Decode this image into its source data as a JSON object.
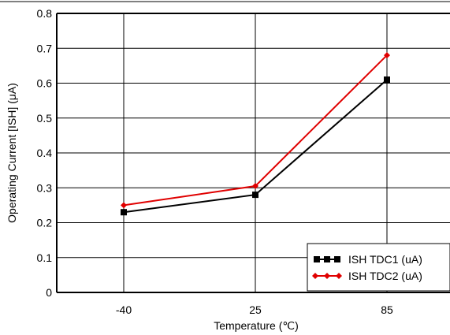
{
  "chart_data": {
    "type": "line",
    "categories": [
      "-40",
      "25",
      "85"
    ],
    "series": [
      {
        "name": "ISH TDC1 (uA)",
        "values": [
          0.23,
          0.28,
          0.61
        ],
        "color": "#000000",
        "marker": "square"
      },
      {
        "name": "ISH TDC2 (uA)",
        "values": [
          0.25,
          0.305,
          0.68
        ],
        "color": "#e00000",
        "marker": "diamond"
      }
    ],
    "xlabel": "Temperature (℃)",
    "ylabel": "Operating Current [ISH] (μA)",
    "ylim": [
      0,
      0.8
    ],
    "yticks": [
      "0",
      "0.1",
      "0.2",
      "0.3",
      "0.4",
      "0.5",
      "0.6",
      "0.7",
      "0.8"
    ],
    "grid": true,
    "legend_position": "bottom-right"
  }
}
